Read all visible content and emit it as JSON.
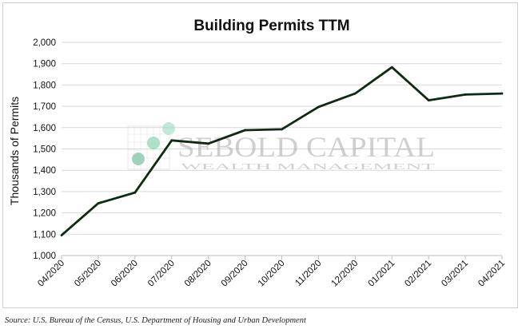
{
  "chart_data": {
    "type": "line",
    "title": "Building Permits TTM",
    "xlabel": "",
    "ylabel": "Thousands of Permits",
    "categories": [
      "04/2020",
      "05/2020",
      "06/2020",
      "07/2020",
      "08/2020",
      "09/2020",
      "10/2020",
      "11/2020",
      "12/2020",
      "01/2021",
      "02/2021",
      "03/2021",
      "04/2021"
    ],
    "series": [
      {
        "values": [
          1095,
          1245,
          1295,
          1540,
          1525,
          1588,
          1592,
          1697,
          1760,
          1883,
          1728,
          1755,
          1760
        ]
      }
    ],
    "ylim": [
      1000,
      2000
    ],
    "yticks": [
      1000,
      1100,
      1200,
      1300,
      1400,
      1500,
      1600,
      1700,
      1800,
      1900,
      2000
    ],
    "grid": true,
    "legend": "none",
    "line_color": "#0f2a12"
  },
  "watermark": {
    "line1": "SEBOLD CAPITAL",
    "line2": "WEALTH MANAGEMENT"
  },
  "source": "Source: U.S. Bureau of the Census, U.S. Department of Housing and Urban Development"
}
